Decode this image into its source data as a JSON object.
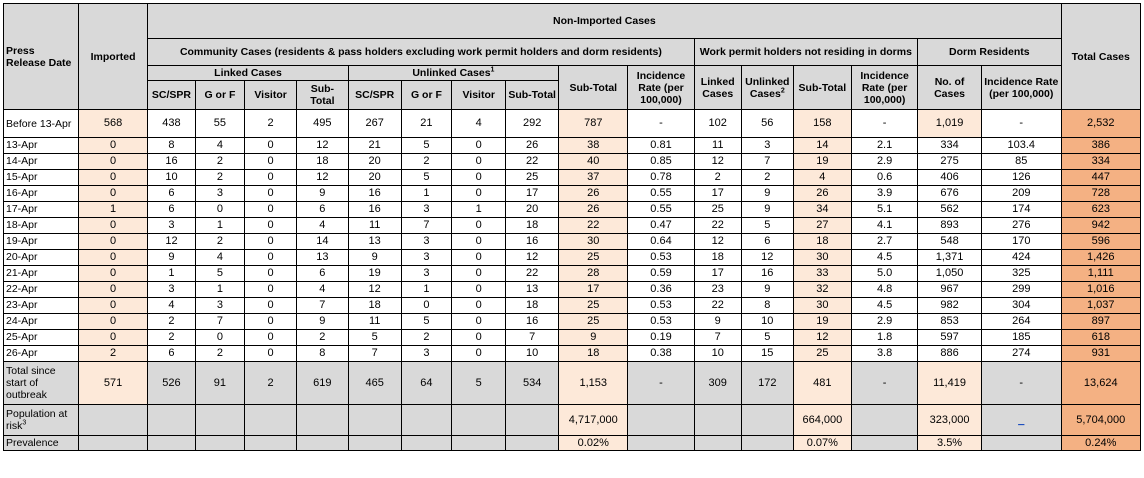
{
  "header": {
    "press_release_date": "Press Release Date",
    "imported": "Imported",
    "non_imported": "Non-Imported Cases",
    "total_cases": "Total Cases",
    "community": "Community Cases (residents & pass holders excluding work permit holders and dorm residents)",
    "work_permit": "Work permit holders not residing in dorms",
    "dorm": "Dorm Residents",
    "linked_cases": "Linked Cases",
    "unlinked_cases": "Unlinked Cases",
    "unlinked_sup": "1",
    "sub_total_community": "Sub-Total",
    "incidence_rate_community": "Incidence Rate (per 100,000)",
    "wp_linked": "Linked Cases",
    "wp_unlinked": "Unlinked Cases",
    "wp_unlinked_sup": "2",
    "wp_sub_total": "Sub-Total",
    "wp_incidence": "Incidence Rate (per 100,000)",
    "dorm_no_cases": "No. of Cases",
    "dorm_incidence": "Incidence Rate (per 100,000)",
    "linked_sc": "SC/SPR",
    "linked_gf": "G or F",
    "linked_visitor": "Visitor",
    "linked_sub": "Sub-Total",
    "unlinked_sc": "SC/SPR",
    "unlinked_gf": "G or F",
    "unlinked_visitor": "Visitor",
    "unlinked_sub": "Sub-Total"
  },
  "rows": [
    [
      "Before 13-Apr",
      "568",
      "438",
      "55",
      "2",
      "495",
      "267",
      "21",
      "4",
      "292",
      "787",
      "-",
      "102",
      "56",
      "158",
      "-",
      "1,019",
      "-",
      "2,532"
    ],
    [
      "13-Apr",
      "0",
      "8",
      "4",
      "0",
      "12",
      "21",
      "5",
      "0",
      "26",
      "38",
      "0.81",
      "11",
      "3",
      "14",
      "2.1",
      "334",
      "103.4",
      "386"
    ],
    [
      "14-Apr",
      "0",
      "16",
      "2",
      "0",
      "18",
      "20",
      "2",
      "0",
      "22",
      "40",
      "0.85",
      "12",
      "7",
      "19",
      "2.9",
      "275",
      "85",
      "334"
    ],
    [
      "15-Apr",
      "0",
      "10",
      "2",
      "0",
      "12",
      "20",
      "5",
      "0",
      "25",
      "37",
      "0.78",
      "2",
      "2",
      "4",
      "0.6",
      "406",
      "126",
      "447"
    ],
    [
      "16-Apr",
      "0",
      "6",
      "3",
      "0",
      "9",
      "16",
      "1",
      "0",
      "17",
      "26",
      "0.55",
      "17",
      "9",
      "26",
      "3.9",
      "676",
      "209",
      "728"
    ],
    [
      "17-Apr",
      "1",
      "6",
      "0",
      "0",
      "6",
      "16",
      "3",
      "1",
      "20",
      "26",
      "0.55",
      "25",
      "9",
      "34",
      "5.1",
      "562",
      "174",
      "623"
    ],
    [
      "18-Apr",
      "0",
      "3",
      "1",
      "0",
      "4",
      "11",
      "7",
      "0",
      "18",
      "22",
      "0.47",
      "22",
      "5",
      "27",
      "4.1",
      "893",
      "276",
      "942"
    ],
    [
      "19-Apr",
      "0",
      "12",
      "2",
      "0",
      "14",
      "13",
      "3",
      "0",
      "16",
      "30",
      "0.64",
      "12",
      "6",
      "18",
      "2.7",
      "548",
      "170",
      "596"
    ],
    [
      "20-Apr",
      "0",
      "9",
      "4",
      "0",
      "13",
      "9",
      "3",
      "0",
      "12",
      "25",
      "0.53",
      "18",
      "12",
      "30",
      "4.5",
      "1,371",
      "424",
      "1,426"
    ],
    [
      "21-Apr",
      "0",
      "1",
      "5",
      "0",
      "6",
      "19",
      "3",
      "0",
      "22",
      "28",
      "0.59",
      "17",
      "16",
      "33",
      "5.0",
      "1,050",
      "325",
      "1,111"
    ],
    [
      "22-Apr",
      "0",
      "3",
      "1",
      "0",
      "4",
      "12",
      "1",
      "0",
      "13",
      "17",
      "0.36",
      "23",
      "9",
      "32",
      "4.8",
      "967",
      "299",
      "1,016"
    ],
    [
      "23-Apr",
      "0",
      "4",
      "3",
      "0",
      "7",
      "18",
      "0",
      "0",
      "18",
      "25",
      "0.53",
      "22",
      "8",
      "30",
      "4.5",
      "982",
      "304",
      "1,037"
    ],
    [
      "24-Apr",
      "0",
      "2",
      "7",
      "0",
      "9",
      "11",
      "5",
      "0",
      "16",
      "25",
      "0.53",
      "9",
      "10",
      "19",
      "2.9",
      "853",
      "264",
      "897"
    ],
    [
      "25-Apr",
      "0",
      "2",
      "0",
      "0",
      "2",
      "5",
      "2",
      "0",
      "7",
      "9",
      "0.19",
      "7",
      "5",
      "12",
      "1.8",
      "597",
      "185",
      "618"
    ],
    [
      "26-Apr",
      "2",
      "6",
      "2",
      "0",
      "8",
      "7",
      "3",
      "0",
      "10",
      "18",
      "0.38",
      "10",
      "15",
      "25",
      "3.8",
      "886",
      "274",
      "931"
    ]
  ],
  "total_row": [
    "Total since start of outbreak",
    "571",
    "526",
    "91",
    "2",
    "619",
    "465",
    "64",
    "5",
    "534",
    "1,153",
    "-",
    "309",
    "172",
    "481",
    "-",
    "11,419",
    "-",
    "13,624"
  ],
  "population_row": {
    "label": "Population at risk",
    "label_sup": "3",
    "community": "4,717,000",
    "work_permit": "664,000",
    "dorm": "323,000",
    "dorm_incidence": "_",
    "total": "5,704,000"
  },
  "prevalence_row": {
    "label": "Prevalence",
    "community": "0.02%",
    "work_permit": "0.07%",
    "dorm": "3.5%",
    "total": "0.24%"
  },
  "colors": {
    "header_grey": "#d9d9d9",
    "peach": "#fde9d9",
    "orange": "#fbd5b5",
    "dark_orange": "#f4b183"
  }
}
